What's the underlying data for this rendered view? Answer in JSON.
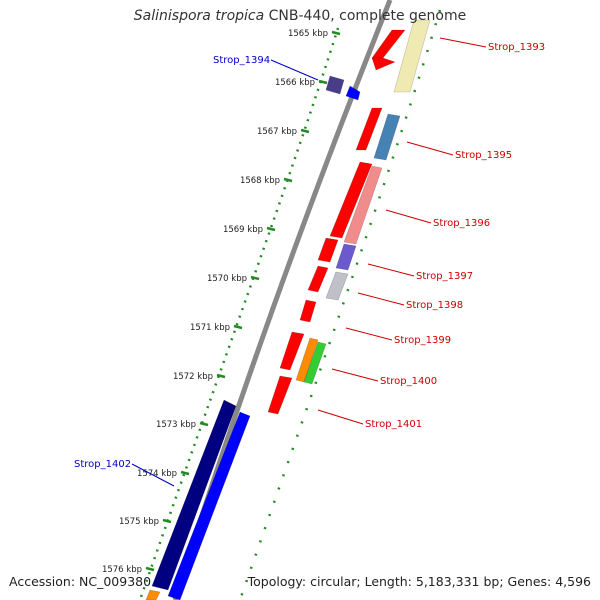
{
  "title": {
    "species": "Salinispora tropica",
    "strain": "CNB-440, complete genome"
  },
  "footer": {
    "accession": "Accession: NC_009380",
    "topology": "Topology: circular; Length: 5,183,331 bp; Genes: 4,596"
  },
  "colors": {
    "backbone": "#888888",
    "tick": "#228b22",
    "forward_label": "#0000cc",
    "reverse_label": "#cc0000"
  },
  "ticks": [
    "1565 kbp",
    "1566 kbp",
    "1567 kbp",
    "1568 kbp",
    "1569 kbp",
    "1570 kbp",
    "1571 kbp",
    "1572 kbp",
    "1573 kbp",
    "1574 kbp",
    "1575 kbp",
    "1576 kbp"
  ],
  "genes": [
    {
      "label": "Strop_1393",
      "strand": "reverse",
      "color": "#ff0000"
    },
    {
      "label": "Strop_1394",
      "strand": "forward",
      "color": "#0000ff"
    },
    {
      "label": "Strop_1395",
      "strand": "reverse",
      "color": "#4682b4"
    },
    {
      "label": "Strop_1396",
      "strand": "reverse",
      "color": "#f08080"
    },
    {
      "label": "Strop_1397",
      "strand": "reverse",
      "color": "#6a5acd"
    },
    {
      "label": "Strop_1398",
      "strand": "reverse",
      "color": "#c0c0c8"
    },
    {
      "label": "Strop_1399",
      "strand": "reverse",
      "color": "#ff0000"
    },
    {
      "label": "Strop_1400",
      "strand": "reverse",
      "color": "#32cd32"
    },
    {
      "label": "Strop_1401",
      "strand": "reverse",
      "color": "#ff0000"
    },
    {
      "label": "Strop_1402",
      "strand": "forward",
      "color": "#000080"
    }
  ]
}
